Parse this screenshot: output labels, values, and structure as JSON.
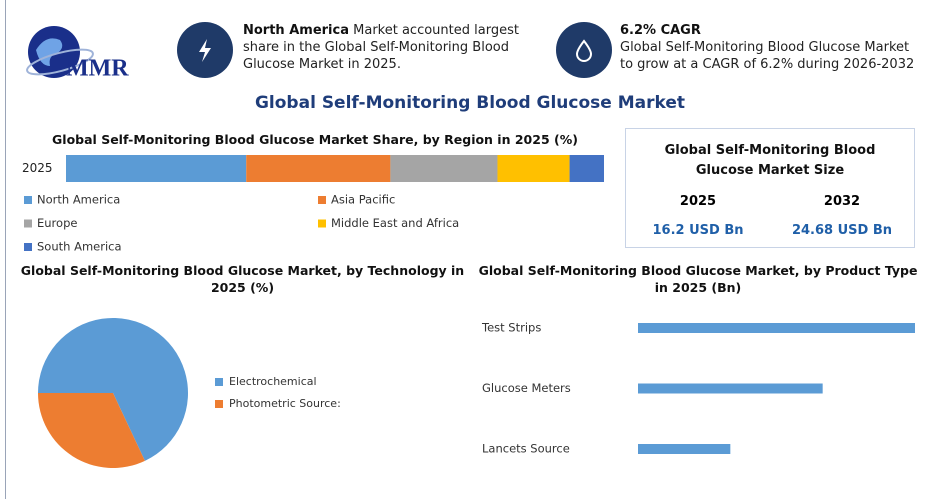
{
  "header": {
    "logo": "MMR",
    "highlights": [
      {
        "title": "North America",
        "text": "Market accounted largest share in the Global Self-Monitoring Blood Glucose Market in 2025."
      },
      {
        "title": "6.2% CAGR",
        "text": "Global Self-Monitoring Blood Glucose Market to grow at a CAGR of 6.2% during 2026-2032"
      }
    ]
  },
  "main_title": "Global Self-Monitoring Blood Glucose Market",
  "market_size": {
    "title": "Global Self-Monitoring Blood Glucose Market Size",
    "years": [
      "2025",
      "2032"
    ],
    "values": [
      "16.2 USD Bn",
      "24.68 USD Bn"
    ]
  },
  "chart_data": [
    {
      "type": "stacked-bar",
      "title": "Global Self-Monitoring Blood Glucose Market Share, by Region in 2025 (%)",
      "categories": [
        "2025"
      ],
      "series": [
        {
          "name": "North America",
          "color": "#5b9bd5",
          "values": [
            33.5
          ]
        },
        {
          "name": "Asia Pacific",
          "color": "#ed7d31",
          "values": [
            26.8
          ]
        },
        {
          "name": "Europe",
          "color": "#a5a5a5",
          "values": [
            19.9
          ]
        },
        {
          "name": "Middle East and Africa",
          "color": "#ffc000",
          "values": [
            13.4
          ]
        },
        {
          "name": "South America",
          "color": "#4472c4",
          "values": [
            6.4
          ]
        }
      ]
    },
    {
      "type": "pie",
      "title": "Global Self-Monitoring Blood Glucose Market, by Technology in 2025 (%)",
      "categories": [
        "Electrochemical",
        "Photometric Source:"
      ],
      "values": [
        68,
        32
      ],
      "colors": [
        "#5b9bd5",
        "#ed7d31"
      ]
    },
    {
      "type": "hbar",
      "title": "Global Self-Monitoring Blood Glucose Market, by Product Type in 2025 (Bn)",
      "categories": [
        "Test Strips",
        "Glucose Meters",
        "Lancets Source"
      ],
      "values": [
        8.1,
        5.4,
        2.7
      ],
      "color": "#5b9bd5"
    }
  ]
}
